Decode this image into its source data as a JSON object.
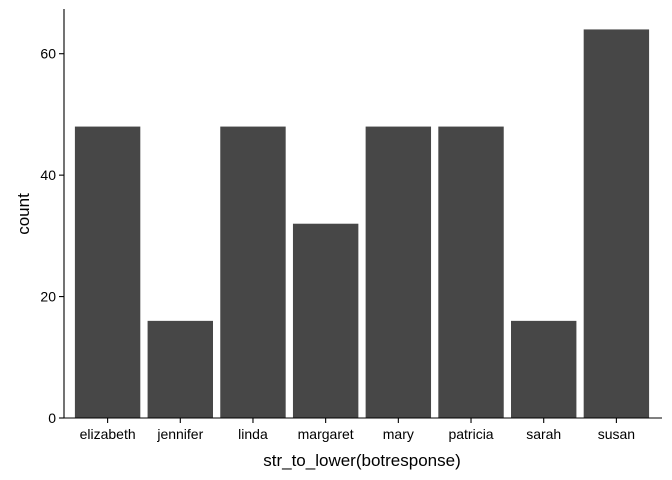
{
  "chart_data": {
    "type": "bar",
    "title": "",
    "xlabel": "str_to_lower(botresponse)",
    "ylabel": "count",
    "categories": [
      "elizabeth",
      "jennifer",
      "linda",
      "margaret",
      "mary",
      "patricia",
      "sarah",
      "susan"
    ],
    "values": [
      48,
      16,
      48,
      32,
      48,
      48,
      16,
      64
    ],
    "ylim": [
      0,
      67.2
    ],
    "yticks": [
      0,
      20,
      40,
      60
    ],
    "grid": false,
    "bar_color": "#474747",
    "axis_color": "#000000"
  }
}
